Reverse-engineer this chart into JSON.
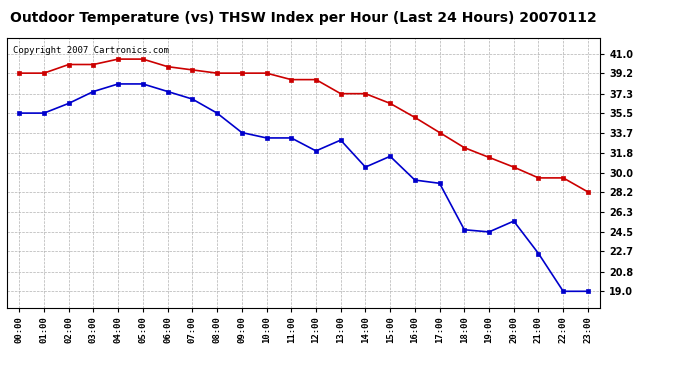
{
  "title": "Outdoor Temperature (vs) THSW Index per Hour (Last 24 Hours) 20070112",
  "copyright_text": "Copyright 2007 Cartronics.com",
  "hours": [
    "00:00",
    "01:00",
    "02:00",
    "03:00",
    "04:00",
    "05:00",
    "06:00",
    "07:00",
    "08:00",
    "09:00",
    "10:00",
    "11:00",
    "12:00",
    "13:00",
    "14:00",
    "15:00",
    "16:00",
    "17:00",
    "18:00",
    "19:00",
    "20:00",
    "21:00",
    "22:00",
    "23:00"
  ],
  "red_data": [
    39.2,
    39.2,
    40.0,
    40.0,
    40.5,
    40.5,
    39.8,
    39.5,
    39.2,
    39.2,
    39.2,
    38.6,
    38.6,
    37.3,
    37.3,
    36.4,
    35.1,
    33.7,
    32.3,
    31.4,
    30.5,
    29.5,
    29.5,
    28.2
  ],
  "blue_data": [
    35.5,
    35.5,
    36.4,
    37.5,
    38.2,
    38.2,
    37.5,
    36.8,
    35.5,
    33.7,
    33.2,
    33.2,
    32.0,
    33.0,
    30.5,
    31.5,
    29.3,
    29.0,
    24.7,
    24.5,
    25.5,
    22.5,
    19.0,
    19.0
  ],
  "yticks": [
    19.0,
    20.8,
    22.7,
    24.5,
    26.3,
    28.2,
    30.0,
    31.8,
    33.7,
    35.5,
    37.3,
    39.2,
    41.0
  ],
  "ymin": 17.5,
  "ymax": 42.5,
  "red_color": "#cc0000",
  "blue_color": "#0000cc",
  "bg_color": "#ffffff",
  "grid_color": "#aaaaaa",
  "title_fontsize": 10,
  "copyright_fontsize": 6.5
}
